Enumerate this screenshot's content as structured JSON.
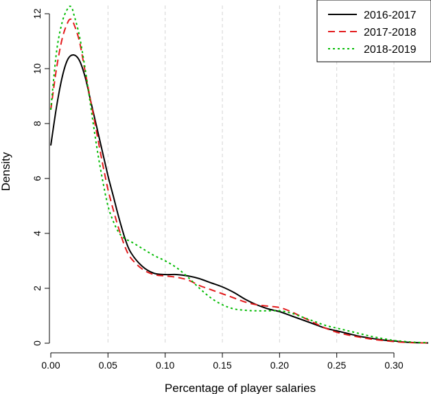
{
  "chart_data": {
    "type": "line",
    "title": "",
    "xlabel": "Percentage of player salaries",
    "ylabel": "Density",
    "xlim": [
      0,
      0.33
    ],
    "ylim": [
      0,
      12.5
    ],
    "x_ticks": [
      "0.00",
      "0.05",
      "0.10",
      "0.15",
      "0.20",
      "0.25",
      "0.30"
    ],
    "x_tick_values": [
      0,
      0.05,
      0.1,
      0.15,
      0.2,
      0.25,
      0.3
    ],
    "y_ticks": [
      "0",
      "2",
      "4",
      "6",
      "8",
      "10",
      "12"
    ],
    "y_tick_values": [
      0,
      2,
      4,
      6,
      8,
      10,
      12
    ],
    "grid": "vertical dashed",
    "legend_position": "top-right",
    "series": [
      {
        "name": "2016-2017",
        "color": "#000000",
        "dash": "solid",
        "points": [
          [
            0.0,
            7.2
          ],
          [
            0.005,
            8.6
          ],
          [
            0.01,
            9.7
          ],
          [
            0.015,
            10.35
          ],
          [
            0.02,
            10.5
          ],
          [
            0.025,
            10.3
          ],
          [
            0.03,
            9.7
          ],
          [
            0.035,
            8.8
          ],
          [
            0.04,
            7.9
          ],
          [
            0.045,
            7.0
          ],
          [
            0.05,
            6.1
          ],
          [
            0.055,
            5.3
          ],
          [
            0.06,
            4.5
          ],
          [
            0.065,
            3.8
          ],
          [
            0.07,
            3.3
          ],
          [
            0.08,
            2.8
          ],
          [
            0.09,
            2.55
          ],
          [
            0.1,
            2.5
          ],
          [
            0.11,
            2.5
          ],
          [
            0.12,
            2.45
          ],
          [
            0.13,
            2.35
          ],
          [
            0.14,
            2.2
          ],
          [
            0.15,
            2.05
          ],
          [
            0.16,
            1.85
          ],
          [
            0.17,
            1.6
          ],
          [
            0.18,
            1.4
          ],
          [
            0.19,
            1.25
          ],
          [
            0.2,
            1.15
          ],
          [
            0.21,
            1.0
          ],
          [
            0.22,
            0.85
          ],
          [
            0.23,
            0.7
          ],
          [
            0.24,
            0.55
          ],
          [
            0.25,
            0.45
          ],
          [
            0.26,
            0.35
          ],
          [
            0.27,
            0.25
          ],
          [
            0.28,
            0.18
          ],
          [
            0.29,
            0.12
          ],
          [
            0.3,
            0.08
          ],
          [
            0.31,
            0.04
          ],
          [
            0.32,
            0.02
          ],
          [
            0.33,
            0.01
          ]
        ]
      },
      {
        "name": "2017-2018",
        "color": "#e31a1c",
        "dash": "dashed",
        "points": [
          [
            0.0,
            8.5
          ],
          [
            0.005,
            10.0
          ],
          [
            0.01,
            11.1
          ],
          [
            0.015,
            11.7
          ],
          [
            0.018,
            11.8
          ],
          [
            0.02,
            11.65
          ],
          [
            0.025,
            11.0
          ],
          [
            0.03,
            9.9
          ],
          [
            0.035,
            8.8
          ],
          [
            0.04,
            7.7
          ],
          [
            0.045,
            6.6
          ],
          [
            0.05,
            5.6
          ],
          [
            0.055,
            4.8
          ],
          [
            0.06,
            4.1
          ],
          [
            0.065,
            3.5
          ],
          [
            0.07,
            3.1
          ],
          [
            0.08,
            2.7
          ],
          [
            0.09,
            2.5
          ],
          [
            0.1,
            2.45
          ],
          [
            0.11,
            2.4
          ],
          [
            0.12,
            2.3
          ],
          [
            0.13,
            2.1
          ],
          [
            0.14,
            1.95
          ],
          [
            0.15,
            1.8
          ],
          [
            0.16,
            1.65
          ],
          [
            0.17,
            1.5
          ],
          [
            0.18,
            1.4
          ],
          [
            0.19,
            1.35
          ],
          [
            0.2,
            1.3
          ],
          [
            0.21,
            1.15
          ],
          [
            0.22,
            0.95
          ],
          [
            0.23,
            0.75
          ],
          [
            0.24,
            0.55
          ],
          [
            0.25,
            0.4
          ],
          [
            0.26,
            0.3
          ],
          [
            0.27,
            0.22
          ],
          [
            0.28,
            0.15
          ],
          [
            0.29,
            0.1
          ],
          [
            0.3,
            0.06
          ],
          [
            0.31,
            0.03
          ],
          [
            0.32,
            0.015
          ],
          [
            0.33,
            0.01
          ]
        ]
      },
      {
        "name": "2018-2019",
        "color": "#00bb00",
        "dash": "dotted",
        "points": [
          [
            0.0,
            8.5
          ],
          [
            0.005,
            10.6
          ],
          [
            0.01,
            11.7
          ],
          [
            0.015,
            12.2
          ],
          [
            0.018,
            12.25
          ],
          [
            0.02,
            12.0
          ],
          [
            0.025,
            11.2
          ],
          [
            0.03,
            10.0
          ],
          [
            0.035,
            8.6
          ],
          [
            0.04,
            7.2
          ],
          [
            0.045,
            6.0
          ],
          [
            0.05,
            5.0
          ],
          [
            0.055,
            4.4
          ],
          [
            0.06,
            4.0
          ],
          [
            0.065,
            3.8
          ],
          [
            0.07,
            3.7
          ],
          [
            0.08,
            3.45
          ],
          [
            0.09,
            3.2
          ],
          [
            0.1,
            3.0
          ],
          [
            0.11,
            2.75
          ],
          [
            0.12,
            2.4
          ],
          [
            0.13,
            2.0
          ],
          [
            0.14,
            1.65
          ],
          [
            0.15,
            1.4
          ],
          [
            0.16,
            1.25
          ],
          [
            0.17,
            1.2
          ],
          [
            0.18,
            1.18
          ],
          [
            0.19,
            1.18
          ],
          [
            0.2,
            1.18
          ],
          [
            0.21,
            1.1
          ],
          [
            0.22,
            0.95
          ],
          [
            0.23,
            0.8
          ],
          [
            0.24,
            0.65
          ],
          [
            0.25,
            0.55
          ],
          [
            0.26,
            0.45
          ],
          [
            0.27,
            0.35
          ],
          [
            0.28,
            0.25
          ],
          [
            0.29,
            0.17
          ],
          [
            0.3,
            0.1
          ],
          [
            0.31,
            0.06
          ],
          [
            0.32,
            0.03
          ],
          [
            0.33,
            0.02
          ]
        ]
      }
    ]
  }
}
